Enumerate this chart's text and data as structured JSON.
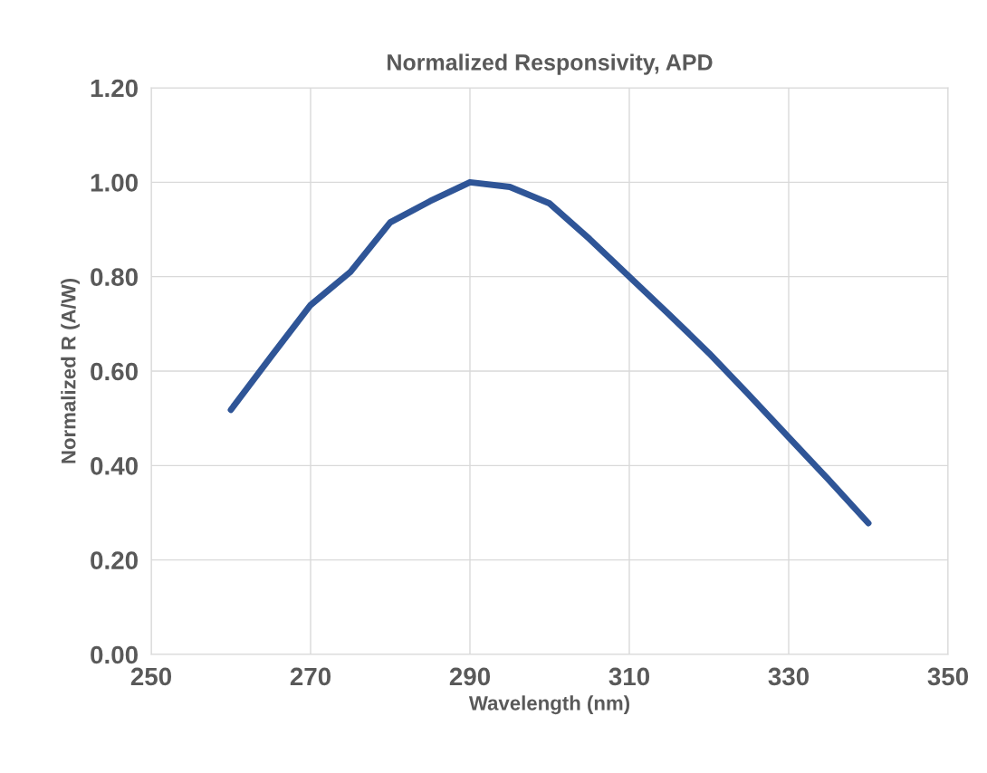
{
  "chart_data": {
    "type": "line",
    "title": "Normalized Responsivity, APD",
    "xlabel": "Wavelength (nm)",
    "ylabel": "Normalized R (A/W)",
    "x": [
      260,
      265,
      270,
      275,
      280,
      285,
      290,
      295,
      300,
      305,
      310,
      315,
      320,
      325,
      330,
      335,
      340
    ],
    "series": [
      {
        "color": "#2f5597",
        "values": [
          0.518,
          0.63,
          0.74,
          0.81,
          0.915,
          0.96,
          1.0,
          0.99,
          0.955,
          0.88,
          0.8,
          0.72,
          0.638,
          0.55,
          0.46,
          0.37,
          0.278
        ]
      }
    ],
    "xlim": [
      250,
      350
    ],
    "xticks": [
      250,
      270,
      290,
      310,
      330,
      350
    ],
    "ylim": [
      0,
      1.2
    ],
    "yticks": [
      {
        "value": 0,
        "label": "0.00"
      },
      {
        "value": 0.2,
        "label": "0.20"
      },
      {
        "value": 0.4,
        "label": "0.40"
      },
      {
        "value": 0.6,
        "label": "0.60"
      },
      {
        "value": 0.8,
        "label": "0.80"
      },
      {
        "value": 1.0,
        "label": "1.00"
      },
      {
        "value": 1.2,
        "label": "1.20"
      }
    ],
    "grid": true,
    "marker": "none",
    "line_style": "solid"
  }
}
